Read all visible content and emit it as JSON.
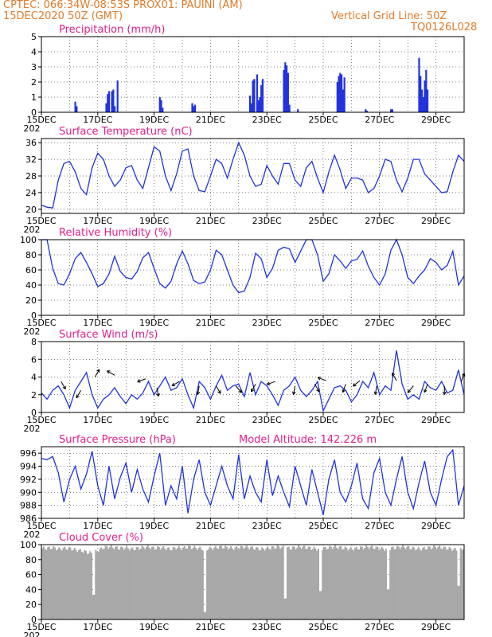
{
  "header": {
    "line1_left": "CPTEC:  066:34W-08:53S  PROX01: PAUINI (AM)",
    "line2_left": "15DEC2020 50Z (GMT)",
    "line2_right": "Vertical Grid Line: 50Z",
    "line3_right": "TQ0126L028"
  },
  "colors": {
    "header": "#e07a2a",
    "title": "#e0208a",
    "series": "#2233dd",
    "cloud": "#a8a8a8"
  },
  "x_axis": {
    "labels": [
      "15DEC",
      "17DEC",
      "19DEC",
      "21DEC",
      "23DEC",
      "25DEC",
      "27DEC",
      "29DEC"
    ],
    "clipped_label": "202",
    "start_day": 15,
    "end_day": 30
  },
  "chart_data": [
    {
      "type": "bar",
      "title": "Precipitation (mm/h)",
      "ylim": [
        0,
        5
      ],
      "yticks": [
        "0",
        "1",
        "2",
        "3",
        "4",
        "5"
      ],
      "x_day": [
        16.2,
        16.25,
        17.3,
        17.35,
        17.4,
        17.5,
        17.55,
        17.6,
        17.7,
        19.2,
        19.25,
        19.3,
        20.35,
        20.4,
        20.45,
        22.4,
        22.45,
        22.5,
        22.55,
        22.65,
        22.7,
        22.75,
        22.8,
        22.85,
        23.6,
        23.65,
        23.7,
        23.75,
        23.8,
        24.1,
        25.5,
        25.55,
        25.6,
        25.65,
        25.7,
        25.75,
        26.5,
        26.55,
        27.4,
        27.45,
        28.4,
        28.45,
        28.5,
        28.55,
        28.6,
        28.65,
        28.7
      ],
      "values": [
        0.7,
        0.4,
        0.6,
        1.2,
        1.4,
        1.4,
        1.5,
        0.4,
        2.1,
        1.0,
        0.8,
        0.3,
        0.6,
        0.4,
        0.5,
        1.1,
        0.6,
        2.1,
        2.2,
        2.5,
        0.8,
        1.0,
        1.8,
        2.2,
        2.8,
        3.3,
        3.1,
        2.6,
        0.5,
        0.2,
        2.0,
        2.4,
        2.6,
        2.5,
        1.5,
        2.3,
        0.2,
        0.1,
        0.2,
        0.2,
        3.6,
        2.4,
        1.5,
        1.0,
        2.1,
        2.8,
        1.5
      ]
    },
    {
      "type": "line",
      "title": "Surface Temperature (nC)",
      "ylim": [
        19,
        37
      ],
      "yticks": [
        "20",
        "24",
        "28",
        "32",
        "36"
      ],
      "x_day": [
        15.0,
        15.2,
        15.4,
        15.6,
        15.8,
        16.0,
        16.2,
        16.4,
        16.6,
        16.8,
        17.0,
        17.2,
        17.4,
        17.6,
        17.8,
        18.0,
        18.2,
        18.4,
        18.6,
        18.8,
        19.0,
        19.2,
        19.4,
        19.6,
        19.8,
        20.0,
        20.2,
        20.4,
        20.6,
        20.8,
        21.0,
        21.2,
        21.4,
        21.6,
        21.8,
        22.0,
        22.2,
        22.4,
        22.6,
        22.8,
        23.0,
        23.2,
        23.4,
        23.6,
        23.8,
        24.0,
        24.2,
        24.4,
        24.6,
        24.8,
        25.0,
        25.2,
        25.4,
        25.6,
        25.8,
        26.0,
        26.2,
        26.4,
        26.6,
        26.8,
        27.0,
        27.2,
        27.4,
        27.6,
        27.8,
        28.0,
        28.2,
        28.4,
        28.6,
        28.8,
        29.0,
        29.2,
        29.4,
        29.6,
        29.8,
        30.0
      ],
      "values": [
        21,
        20.5,
        20.3,
        27,
        31,
        31.5,
        29,
        25,
        23.5,
        30,
        33.5,
        32,
        28,
        25.5,
        27,
        30,
        30.5,
        27,
        25,
        30,
        35,
        34,
        28,
        24.5,
        28.5,
        34,
        34.5,
        28,
        24.5,
        24.2,
        28,
        32,
        31,
        27.5,
        32,
        36,
        33,
        28,
        25.5,
        26,
        30.5,
        28,
        26,
        31,
        31,
        27,
        25.5,
        30,
        31.5,
        27.5,
        24,
        29,
        33,
        29.5,
        25,
        27.5,
        27.5,
        27,
        24,
        25,
        28,
        32,
        31.5,
        27,
        24.2,
        27.5,
        32,
        32,
        28.5,
        27,
        25.5,
        24,
        24.2,
        29,
        33,
        31.5
      ]
    },
    {
      "type": "line",
      "title": "Relative Humidity (%)",
      "ylim": [
        0,
        100
      ],
      "yticks": [
        "0",
        "20",
        "40",
        "60",
        "80",
        "100"
      ],
      "x_day": [
        15.0,
        15.2,
        15.4,
        15.6,
        15.8,
        16.0,
        16.2,
        16.4,
        16.6,
        16.8,
        17.0,
        17.2,
        17.4,
        17.6,
        17.8,
        18.0,
        18.2,
        18.4,
        18.6,
        18.8,
        19.0,
        19.2,
        19.4,
        19.6,
        19.8,
        20.0,
        20.2,
        20.4,
        20.6,
        20.8,
        21.0,
        21.2,
        21.4,
        21.6,
        21.8,
        22.0,
        22.2,
        22.4,
        22.6,
        22.8,
        23.0,
        23.2,
        23.4,
        23.6,
        23.8,
        24.0,
        24.2,
        24.4,
        24.6,
        24.8,
        25.0,
        25.2,
        25.4,
        25.6,
        25.8,
        26.0,
        26.2,
        26.4,
        26.6,
        26.8,
        27.0,
        27.2,
        27.4,
        27.6,
        27.8,
        28.0,
        28.2,
        28.4,
        28.6,
        28.8,
        29.0,
        29.2,
        29.4,
        29.6,
        29.8,
        30.0
      ],
      "values": [
        100,
        100,
        62,
        42,
        40,
        55,
        75,
        83,
        70,
        55,
        38,
        42,
        55,
        78,
        58,
        50,
        48,
        58,
        76,
        83,
        62,
        42,
        36,
        45,
        68,
        85,
        68,
        46,
        42,
        44,
        60,
        86,
        80,
        60,
        40,
        30,
        32,
        50,
        82,
        75,
        50,
        62,
        86,
        90,
        88,
        70,
        85,
        100,
        100,
        80,
        45,
        55,
        80,
        72,
        62,
        72,
        74,
        85,
        65,
        50,
        40,
        55,
        86,
        100,
        80,
        50,
        42,
        52,
        60,
        75,
        70,
        60,
        66,
        85,
        40,
        52
      ]
    },
    {
      "type": "line",
      "title": "Surface Wind (m/s)",
      "ylim": [
        0,
        8
      ],
      "yticks": [
        "0",
        "2",
        "4",
        "6",
        "8"
      ],
      "x_day": [
        15.0,
        15.2,
        15.4,
        15.6,
        15.8,
        16.0,
        16.2,
        16.4,
        16.6,
        16.8,
        17.0,
        17.2,
        17.4,
        17.6,
        17.8,
        18.0,
        18.2,
        18.4,
        18.6,
        18.8,
        19.0,
        19.2,
        19.4,
        19.6,
        19.8,
        20.0,
        20.2,
        20.4,
        20.6,
        20.8,
        21.0,
        21.2,
        21.4,
        21.6,
        21.8,
        22.0,
        22.2,
        22.4,
        22.6,
        22.8,
        23.0,
        23.2,
        23.4,
        23.6,
        23.8,
        24.0,
        24.2,
        24.4,
        24.6,
        24.8,
        25.0,
        25.2,
        25.4,
        25.6,
        25.8,
        26.0,
        26.2,
        26.4,
        26.6,
        26.8,
        27.0,
        27.2,
        27.4,
        27.6,
        27.8,
        28.0,
        28.2,
        28.4,
        28.6,
        28.8,
        29.0,
        29.2,
        29.4,
        29.6,
        29.8,
        30.0
      ],
      "values": [
        2.2,
        1.5,
        2.5,
        3.0,
        2.0,
        0.5,
        2.5,
        3.5,
        4.5,
        2.0,
        0.5,
        1.5,
        2.0,
        2.8,
        1.8,
        1.0,
        2.0,
        1.5,
        2.2,
        3.5,
        2.0,
        3.0,
        4.0,
        2.5,
        2.8,
        3.8,
        2.0,
        0.5,
        3.5,
        2.8,
        1.5,
        3.0,
        4.2,
        2.5,
        3.0,
        3.2,
        1.8,
        4.5,
        2.0,
        3.5,
        3.0,
        2.0,
        0.8,
        2.5,
        3.0,
        4.0,
        2.5,
        1.8,
        2.5,
        3.5,
        0.2,
        1.5,
        2.8,
        3.0,
        2.5,
        1.2,
        2.0,
        3.5,
        2.8,
        4.5,
        2.0,
        3.0,
        2.5,
        7.0,
        3.2,
        1.5,
        2.0,
        1.5,
        3.5,
        2.8,
        2.5,
        3.5,
        2.2,
        2.5,
        4.8,
        2.0
      ],
      "wind_arrows": [
        {
          "day": 15.7,
          "speed": 3.5,
          "dir_deg": 150
        },
        {
          "day": 16.4,
          "speed": 2.5,
          "dir_deg": 210
        },
        {
          "day": 16.9,
          "speed": 4.0,
          "dir_deg": 30
        },
        {
          "day": 17.6,
          "speed": 4.2,
          "dir_deg": 300
        },
        {
          "day": 18.7,
          "speed": 3.8,
          "dir_deg": 250
        },
        {
          "day": 19.1,
          "speed": 2.8,
          "dir_deg": 170
        },
        {
          "day": 19.9,
          "speed": 3.5,
          "dir_deg": 240
        },
        {
          "day": 20.6,
          "speed": 3.0,
          "dir_deg": 190
        },
        {
          "day": 21.2,
          "speed": 3.0,
          "dir_deg": 150
        },
        {
          "day": 21.9,
          "speed": 3.0,
          "dir_deg": 140
        },
        {
          "day": 22.6,
          "speed": 3.2,
          "dir_deg": 210
        },
        {
          "day": 23.3,
          "speed": 3.5,
          "dir_deg": 250
        },
        {
          "day": 24.0,
          "speed": 3.0,
          "dir_deg": 190
        },
        {
          "day": 24.7,
          "speed": 3.2,
          "dir_deg": 150
        },
        {
          "day": 25.1,
          "speed": 3.6,
          "dir_deg": 290
        },
        {
          "day": 25.8,
          "speed": 3.2,
          "dir_deg": 200
        },
        {
          "day": 26.3,
          "speed": 3.6,
          "dir_deg": 230
        },
        {
          "day": 26.9,
          "speed": 3.0,
          "dir_deg": 190
        },
        {
          "day": 27.6,
          "speed": 3.6,
          "dir_deg": 330
        },
        {
          "day": 28.2,
          "speed": 3.0,
          "dir_deg": 220
        },
        {
          "day": 28.7,
          "speed": 3.2,
          "dir_deg": 200
        },
        {
          "day": 29.3,
          "speed": 3.0,
          "dir_deg": 180
        },
        {
          "day": 29.9,
          "speed": 3.5,
          "dir_deg": 20
        }
      ]
    },
    {
      "type": "line",
      "title": "Surface Pressure (hPa)",
      "annotation": "Model Altitude: 142.226  m",
      "ylim": [
        986,
        997
      ],
      "yticks": [
        "986",
        "988",
        "990",
        "992",
        "994",
        "996"
      ],
      "x_day": [
        15.0,
        15.2,
        15.4,
        15.6,
        15.8,
        16.0,
        16.2,
        16.4,
        16.6,
        16.8,
        17.0,
        17.2,
        17.4,
        17.6,
        17.8,
        18.0,
        18.2,
        18.4,
        18.6,
        18.8,
        19.0,
        19.2,
        19.4,
        19.6,
        19.8,
        20.0,
        20.2,
        20.4,
        20.6,
        20.8,
        21.0,
        21.2,
        21.4,
        21.6,
        21.8,
        22.0,
        22.2,
        22.4,
        22.6,
        22.8,
        23.0,
        23.2,
        23.4,
        23.6,
        23.8,
        24.0,
        24.2,
        24.4,
        24.6,
        24.8,
        25.0,
        25.2,
        25.4,
        25.6,
        25.8,
        26.0,
        26.2,
        26.4,
        26.6,
        26.8,
        27.0,
        27.2,
        27.4,
        27.6,
        27.8,
        28.0,
        28.2,
        28.4,
        28.6,
        28.8,
        29.0,
        29.2,
        29.4,
        29.6,
        29.8,
        30.0
      ],
      "values": [
        995.2,
        995,
        995.5,
        993,
        988.5,
        992,
        994,
        990.5,
        992.8,
        996.3,
        991,
        988,
        994,
        989,
        992.3,
        994.5,
        990,
        993.5,
        990.5,
        988.5,
        992.5,
        996,
        988,
        991,
        989,
        994,
        986.8,
        992,
        995,
        990,
        988,
        991,
        994,
        991,
        989,
        995.8,
        989,
        992.5,
        990,
        988.5,
        995,
        989.5,
        992.5,
        990,
        987.8,
        994,
        991,
        988,
        993.5,
        990,
        986.5,
        992,
        995,
        990,
        988.5,
        991,
        994.5,
        989,
        987.5,
        993,
        995.2,
        990,
        988,
        992,
        995.5,
        990,
        987.5,
        991.5,
        994.8,
        990,
        988,
        992,
        995.5,
        996.5,
        988,
        991
      ]
    },
    {
      "type": "area",
      "title": "Cloud Cover (%)",
      "ylim": [
        0,
        100
      ],
      "yticks": [
        "0",
        "20",
        "40",
        "60",
        "80",
        "100"
      ],
      "x_day": [
        15.0,
        15.2,
        15.4,
        15.6,
        15.8,
        16.0,
        16.2,
        16.4,
        16.6,
        16.8,
        17.0,
        17.2,
        17.4,
        17.6,
        17.8,
        18.0,
        18.2,
        18.4,
        18.6,
        18.8,
        19.0,
        19.2,
        19.4,
        19.6,
        19.8,
        20.0,
        20.2,
        20.4,
        20.6,
        20.8,
        21.0,
        21.2,
        21.4,
        21.6,
        21.8,
        22.0,
        22.2,
        22.4,
        22.6,
        22.8,
        23.0,
        23.2,
        23.4,
        23.6,
        23.8,
        24.0,
        24.2,
        24.4,
        24.6,
        24.8,
        25.0,
        25.2,
        25.4,
        25.6,
        25.8,
        26.0,
        26.2,
        26.4,
        26.6,
        26.8,
        27.0,
        27.2,
        27.4,
        27.6,
        27.8,
        28.0,
        28.2,
        28.4,
        28.6,
        28.8,
        29.0,
        29.2,
        29.4,
        29.6,
        29.8,
        30.0
      ],
      "values": [
        95,
        95,
        96,
        94,
        95,
        95,
        93,
        92,
        90,
        88,
        92,
        96,
        97,
        96,
        95,
        96,
        94,
        95,
        96,
        97,
        95,
        96,
        95,
        94,
        96,
        95,
        97,
        96,
        95,
        94,
        95,
        96,
        97,
        96,
        95,
        96,
        97,
        96,
        95,
        94,
        95,
        96,
        97,
        96,
        95,
        96,
        97,
        96,
        95,
        94,
        95,
        96,
        97,
        96,
        95,
        94,
        95,
        96,
        97,
        96,
        95,
        94,
        95,
        96,
        97,
        96,
        95,
        94,
        95,
        96,
        97,
        96,
        95,
        94,
        92,
        96
      ],
      "dips": [
        {
          "day": 16.85,
          "value": 33
        },
        {
          "day": 20.8,
          "value": 10
        },
        {
          "day": 23.65,
          "value": 28
        },
        {
          "day": 24.9,
          "value": 38
        },
        {
          "day": 27.3,
          "value": 40
        },
        {
          "day": 29.8,
          "value": 45
        }
      ]
    }
  ]
}
